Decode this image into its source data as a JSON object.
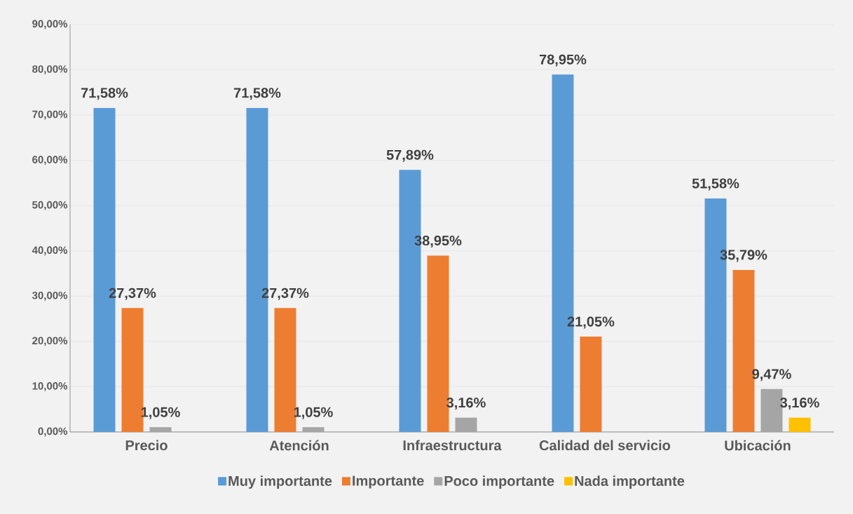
{
  "chart_data": {
    "type": "bar",
    "categories": [
      "Precio",
      "Atención",
      "Infraestructura",
      "Calidad del servicio",
      "Ubicación"
    ],
    "series": [
      {
        "name": "Muy importante",
        "color": "#5b9bd5",
        "values": [
          71.58,
          71.58,
          57.89,
          78.95,
          51.58
        ],
        "value_labels": [
          "71,58%",
          "71,58%",
          "57,89%",
          "78,95%",
          "51,58%"
        ]
      },
      {
        "name": "Importante",
        "color": "#ed7d31",
        "values": [
          27.37,
          27.37,
          38.95,
          21.05,
          35.79
        ],
        "value_labels": [
          "27,37%",
          "27,37%",
          "38,95%",
          "21,05%",
          "35,79%"
        ]
      },
      {
        "name": "Poco importante",
        "color": "#a5a5a5",
        "values": [
          1.05,
          1.05,
          3.16,
          null,
          9.47
        ],
        "value_labels": [
          "1,05%",
          "1,05%",
          "3,16%",
          null,
          "9,47%"
        ]
      },
      {
        "name": "Nada importante",
        "color": "#ffc000",
        "values": [
          null,
          null,
          null,
          null,
          3.16
        ],
        "value_labels": [
          null,
          null,
          null,
          null,
          "3,16%"
        ]
      }
    ],
    "ylim": [
      0,
      90
    ],
    "yticks": [
      {
        "value": 0,
        "label": "0,00%"
      },
      {
        "value": 10,
        "label": "10,00%"
      },
      {
        "value": 20,
        "label": "20,00%"
      },
      {
        "value": 30,
        "label": "30,00%"
      },
      {
        "value": 40,
        "label": "40,00%"
      },
      {
        "value": 50,
        "label": "50,00%"
      },
      {
        "value": 60,
        "label": "60,00%"
      },
      {
        "value": 70,
        "label": "70,00%"
      },
      {
        "value": 80,
        "label": "80,00%"
      },
      {
        "value": 90,
        "label": "90,00%"
      }
    ],
    "grid": "y",
    "legend": "bottom"
  }
}
